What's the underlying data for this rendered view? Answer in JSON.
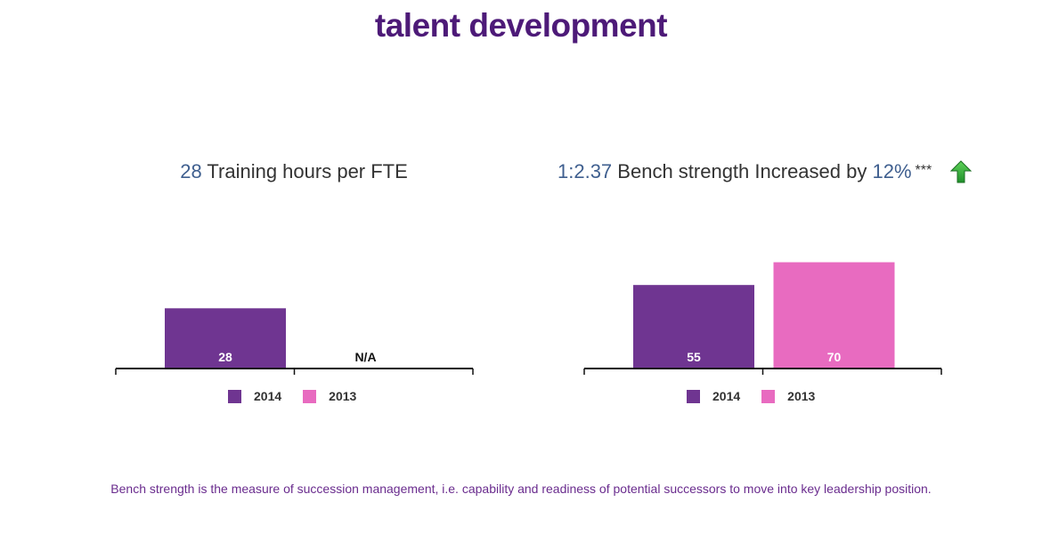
{
  "page_title": "talent development",
  "footnote": "Bench strength is the measure of succession management, i.e. capability and readiness of potential successors to move into key leadership position.",
  "colors": {
    "series_2014": "#6f3591",
    "series_2013": "#e86bc0",
    "highlight": "#3f5f8f"
  },
  "icons": {
    "trend": "up-arrow-icon"
  },
  "chart_data": [
    {
      "type": "bar",
      "heading": {
        "value": "28",
        "text": "Training hours per FTE"
      },
      "series": [
        {
          "name": "2014",
          "values": [
            28
          ],
          "labels": [
            "28"
          ]
        },
        {
          "name": "2013",
          "values": [
            null
          ],
          "labels": [
            "N/A"
          ]
        }
      ],
      "ylim": [
        0,
        60
      ],
      "legend": "bottom"
    },
    {
      "type": "bar",
      "heading": {
        "value": "1:2.37",
        "text": "Bench strength Increased by",
        "change": "12%",
        "marker": "***"
      },
      "series": [
        {
          "name": "2014",
          "values": [
            55
          ],
          "labels": [
            "55"
          ]
        },
        {
          "name": "2013",
          "values": [
            70
          ],
          "labels": [
            "70"
          ]
        }
      ],
      "ylim": [
        0,
        85
      ],
      "legend": "bottom"
    }
  ]
}
